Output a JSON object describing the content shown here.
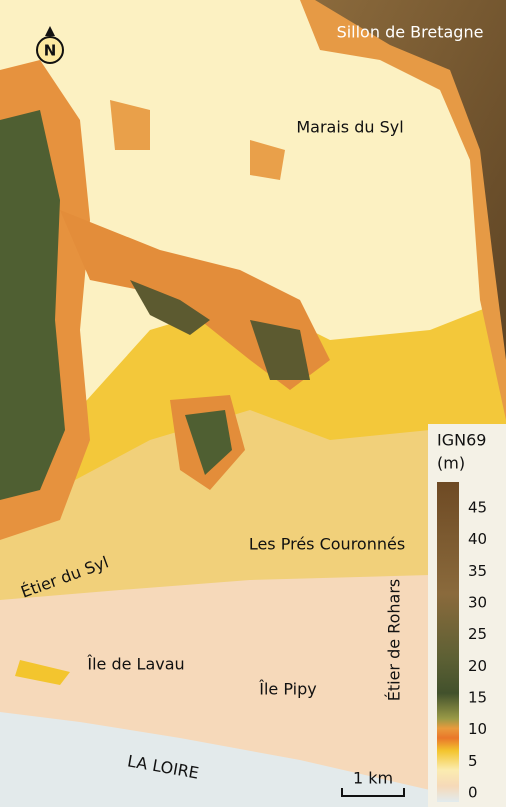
{
  "map": {
    "north": "N",
    "labels": [
      "Sillon de Bretagne",
      "Marais du Syl",
      "Les Prés Couronnés",
      "Étier du Syl",
      "Île de Lavau",
      "Île Pipy",
      "Étier de Rohars",
      "LA LOIRE"
    ],
    "legend": {
      "title": "IGN69",
      "unit": "(m)",
      "ticks": [
        45,
        40,
        35,
        30,
        25,
        20,
        15,
        10,
        5,
        0
      ]
    },
    "scale_bar": "1 km"
  }
}
